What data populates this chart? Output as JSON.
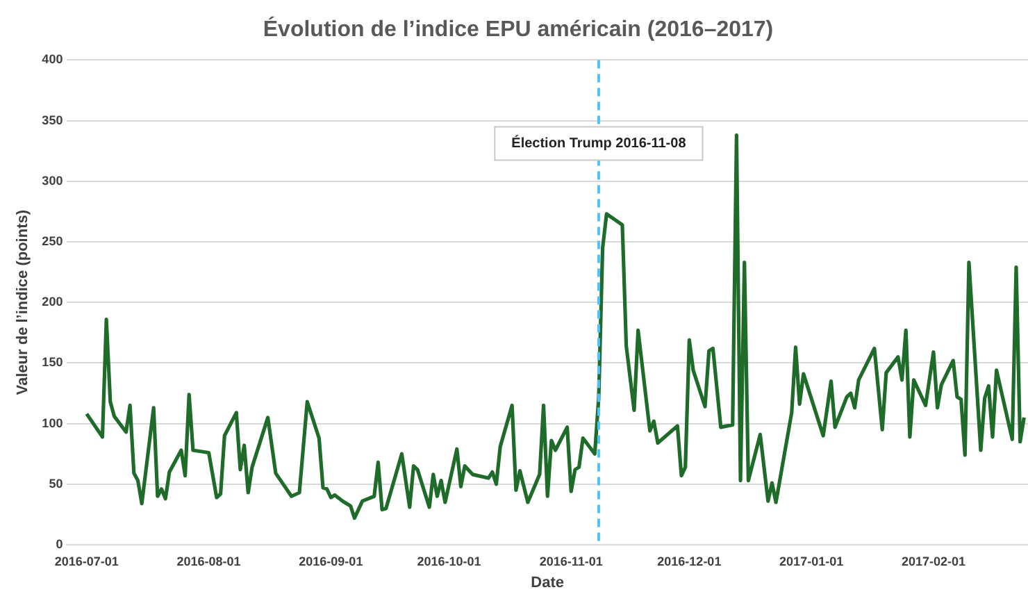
{
  "chart_data": {
    "type": "line",
    "title": "Évolution de l’indice EPU américain (2016–2017)",
    "xlabel": "Date",
    "ylabel": "Valeur de l’indice (points)",
    "x": [
      "2016-07-01",
      "2016-07-05",
      "2016-07-06",
      "2016-07-07",
      "2016-07-08",
      "2016-07-11",
      "2016-07-12",
      "2016-07-13",
      "2016-07-14",
      "2016-07-15",
      "2016-07-18",
      "2016-07-19",
      "2016-07-20",
      "2016-07-21",
      "2016-07-22",
      "2016-07-25",
      "2016-07-26",
      "2016-07-27",
      "2016-07-28",
      "2016-08-01",
      "2016-08-03",
      "2016-08-04",
      "2016-08-05",
      "2016-08-08",
      "2016-08-09",
      "2016-08-10",
      "2016-08-11",
      "2016-08-12",
      "2016-08-16",
      "2016-08-18",
      "2016-08-22",
      "2016-08-24",
      "2016-08-26",
      "2016-08-29",
      "2016-08-30",
      "2016-08-31",
      "2016-09-01",
      "2016-09-02",
      "2016-09-04",
      "2016-09-06",
      "2016-09-07",
      "2016-09-09",
      "2016-09-12",
      "2016-09-13",
      "2016-09-14",
      "2016-09-15",
      "2016-09-19",
      "2016-09-21",
      "2016-09-22",
      "2016-09-23",
      "2016-09-26",
      "2016-09-27",
      "2016-09-28",
      "2016-09-29",
      "2016-09-30",
      "2016-10-03",
      "2016-10-04",
      "2016-10-05",
      "2016-10-07",
      "2016-10-11",
      "2016-10-12",
      "2016-10-13",
      "2016-10-14",
      "2016-10-17",
      "2016-10-18",
      "2016-10-19",
      "2016-10-21",
      "2016-10-24",
      "2016-10-25",
      "2016-10-26",
      "2016-10-27",
      "2016-10-28",
      "2016-10-31",
      "2016-11-01",
      "2016-11-02",
      "2016-11-03",
      "2016-11-04",
      "2016-11-07",
      "2016-11-08",
      "2016-11-09",
      "2016-11-10",
      "2016-11-14",
      "2016-11-15",
      "2016-11-17",
      "2016-11-18",
      "2016-11-21",
      "2016-11-22",
      "2016-11-23",
      "2016-11-28",
      "2016-11-29",
      "2016-11-30",
      "2016-12-01",
      "2016-12-02",
      "2016-12-05",
      "2016-12-06",
      "2016-12-07",
      "2016-12-09",
      "2016-12-12",
      "2016-12-13",
      "2016-12-14",
      "2016-12-15",
      "2016-12-16",
      "2016-12-19",
      "2016-12-21",
      "2016-12-22",
      "2016-12-23",
      "2016-12-27",
      "2016-12-28",
      "2016-12-29",
      "2016-12-30",
      "2017-01-04",
      "2017-01-06",
      "2017-01-07",
      "2017-01-10",
      "2017-01-11",
      "2017-01-12",
      "2017-01-13",
      "2017-01-17",
      "2017-01-19",
      "2017-01-20",
      "2017-01-23",
      "2017-01-24",
      "2017-01-25",
      "2017-01-26",
      "2017-01-27",
      "2017-01-30",
      "2017-02-01",
      "2017-02-02",
      "2017-02-03",
      "2017-02-06",
      "2017-02-07",
      "2017-02-08",
      "2017-02-09",
      "2017-02-10",
      "2017-02-13",
      "2017-02-14",
      "2017-02-15",
      "2017-02-16",
      "2017-02-17",
      "2017-02-21",
      "2017-02-22",
      "2017-02-23",
      "2017-02-24"
    ],
    "series": [
      {
        "color": "#1e6b2a",
        "values": [
          108,
          89,
          186,
          118,
          106,
          93,
          115,
          59,
          53,
          34,
          113,
          40,
          46,
          38,
          60,
          78,
          57,
          124,
          78,
          76,
          39,
          42,
          90,
          109,
          62,
          82,
          43,
          64,
          105,
          59,
          40,
          43,
          118,
          88,
          47,
          46,
          39,
          41,
          36,
          32,
          22,
          36,
          40,
          68,
          29,
          30,
          75,
          31,
          65,
          62,
          31,
          58,
          40,
          53,
          35,
          79,
          48,
          65,
          58,
          55,
          60,
          50,
          81,
          115,
          45,
          61,
          35,
          58,
          115,
          40,
          86,
          78,
          97,
          44,
          62,
          64,
          88,
          75,
          121,
          245,
          273,
          264,
          164,
          111,
          177,
          94,
          102,
          84,
          98,
          57,
          64,
          169,
          144,
          114,
          160,
          162,
          97,
          99,
          338,
          53,
          233,
          53,
          91,
          36,
          51,
          35,
          109,
          163,
          116,
          141,
          90,
          135,
          97,
          122,
          125,
          113,
          136,
          162,
          95,
          142,
          155,
          136,
          177,
          89,
          136,
          115,
          159,
          113,
          132,
          152,
          122,
          120,
          74,
          233,
          78,
          121,
          131,
          89,
          144,
          87,
          229,
          85,
          105
        ]
      }
    ],
    "xlim": [
      "2016-06-26",
      "2017-02-25"
    ],
    "xticks": [
      "2016-07-01",
      "2016-08-01",
      "2016-09-01",
      "2016-10-01",
      "2016-11-01",
      "2016-12-01",
      "2017-01-01",
      "2017-02-01"
    ],
    "ylim": [
      0,
      400
    ],
    "yticks": [
      0,
      50,
      100,
      150,
      200,
      250,
      300,
      350,
      400
    ],
    "grid": "y",
    "marker": "none",
    "line_style": "solid",
    "ref_lines": [
      {
        "axis": "x",
        "value": "2016-11-08",
        "label": "Élection Trump 2016-11-08",
        "color": "#4fc3f7",
        "line_style": "dashed"
      }
    ]
  }
}
